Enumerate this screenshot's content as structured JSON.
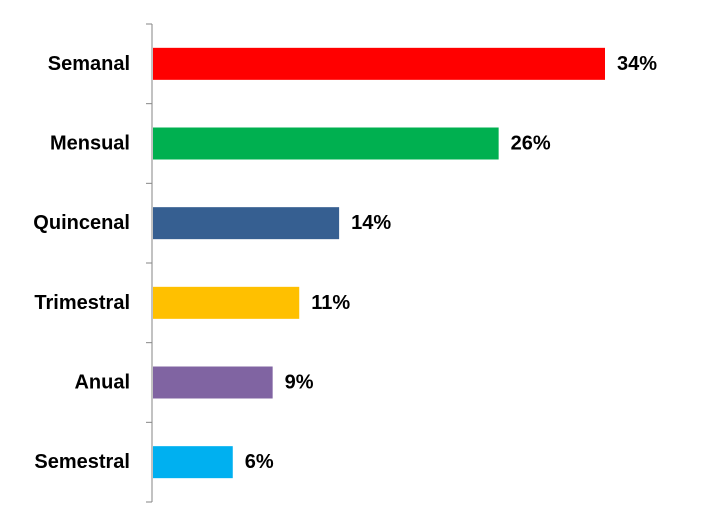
{
  "chart_data": {
    "type": "bar",
    "orientation": "horizontal",
    "title": "",
    "xlabel": "",
    "ylabel": "",
    "xlim": [
      0,
      40
    ],
    "grid": false,
    "legend": "none",
    "categories": [
      "Semanal",
      "Mensual",
      "Quincenal",
      "Trimestral",
      "Anual",
      "Semestral"
    ],
    "values": [
      34,
      26,
      14,
      11,
      9,
      6
    ],
    "value_labels": [
      "34%",
      "26%",
      "14%",
      "11%",
      "9%",
      "6%"
    ],
    "colors": [
      "#ff0000",
      "#00b050",
      "#365f91",
      "#ffc000",
      "#8064a2",
      "#00b0f0"
    ],
    "axis_color": "#868686"
  }
}
